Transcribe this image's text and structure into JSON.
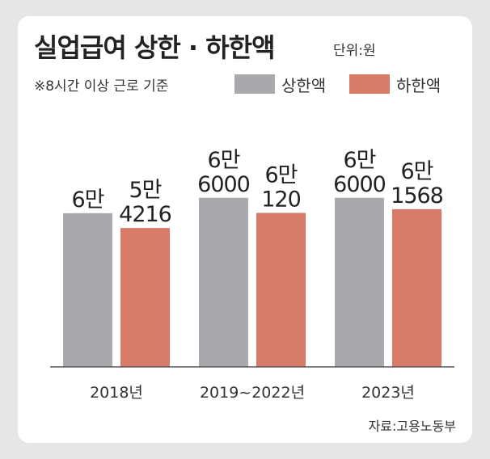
{
  "header": {
    "title": "실업급여 상한 · 하한액",
    "unit": "단위:원",
    "note": "※8시간 이상 근로 기준"
  },
  "footer": {
    "source": "자료:고용노동부"
  },
  "chart_data": {
    "type": "bar",
    "title": "실업급여 상한 · 하한액",
    "categories": [
      "2018년",
      "2019~2022년",
      "2023년"
    ],
    "series": [
      {
        "name": "상한액",
        "color": "#a7a9ac",
        "values": [
          60000,
          66000,
          66000
        ],
        "labels": [
          [
            "6만"
          ],
          [
            "6만",
            "6000"
          ],
          [
            "6만",
            "6000"
          ]
        ]
      },
      {
        "name": "하한액",
        "color": "#d87b68",
        "values": [
          54216,
          60120,
          61568
        ],
        "labels": [
          [
            "5만",
            "4216"
          ],
          [
            "6만",
            "120"
          ],
          [
            "6만",
            "1568"
          ]
        ]
      }
    ],
    "ylim": [
      0,
      70000
    ],
    "grid": false,
    "legend": "top"
  }
}
